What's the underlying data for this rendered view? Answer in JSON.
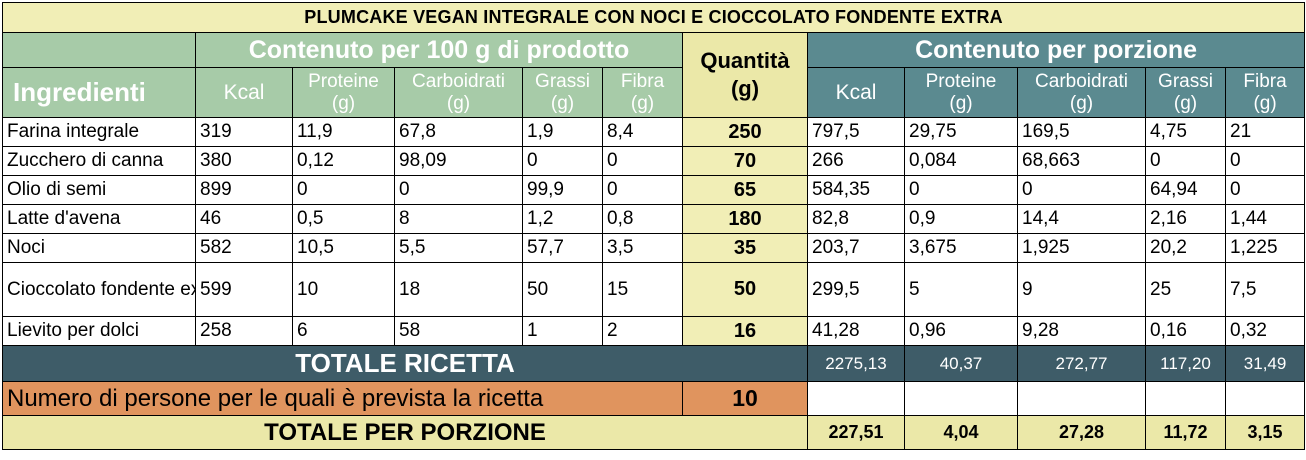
{
  "title": "PLUMCAKE VEGAN INTEGRALE CON NOCI E CIOCCOLATO FONDENTE EXTRA",
  "headers": {
    "per100": "Contenuto per 100 g di prodotto",
    "ingredienti": "Ingredienti",
    "quantita_line1": "Quantità",
    "quantita_line2": "(g)",
    "porzione": "Contenuto per porzione",
    "kcal": "Kcal",
    "proteine": "Proteine",
    "carboidrati": "Carboidrati",
    "grassi": "Grassi",
    "fibra": "Fibra",
    "unit": "(g)"
  },
  "rows": [
    {
      "name": "Farina integrale",
      "kcal": "319",
      "proteine": "11,9",
      "carboidrati": "67,8",
      "grassi": "1,9",
      "fibra": "8,4",
      "qty": "250",
      "p_kcal": "797,5",
      "p_proteine": "29,75",
      "p_carboidrati": "169,5",
      "p_grassi": "4,75",
      "p_fibra": "21"
    },
    {
      "name": "Zucchero di canna",
      "kcal": "380",
      "proteine": "0,12",
      "carboidrati": "98,09",
      "grassi": "0",
      "fibra": "0",
      "qty": "70",
      "p_kcal": "266",
      "p_proteine": "0,084",
      "p_carboidrati": "68,663",
      "p_grassi": "0",
      "p_fibra": "0"
    },
    {
      "name": "Olio di semi",
      "kcal": "899",
      "proteine": "0",
      "carboidrati": "0",
      "grassi": "99,9",
      "fibra": "0",
      "qty": "65",
      "p_kcal": "584,35",
      "p_proteine": "0",
      "p_carboidrati": "0",
      "p_grassi": "64,94",
      "p_fibra": "0"
    },
    {
      "name": "Latte d'avena",
      "kcal": "46",
      "proteine": "0,5",
      "carboidrati": "8",
      "grassi": "1,2",
      "fibra": "0,8",
      "qty": "180",
      "p_kcal": "82,8",
      "p_proteine": "0,9",
      "p_carboidrati": "14,4",
      "p_grassi": "2,16",
      "p_fibra": "1,44"
    },
    {
      "name": "Noci",
      "kcal": "582",
      "proteine": "10,5",
      "carboidrati": "5,5",
      "grassi": "57,7",
      "fibra": "3,5",
      "qty": "35",
      "p_kcal": "203,7",
      "p_proteine": "3,675",
      "p_carboidrati": "1,925",
      "p_grassi": "20,2",
      "p_fibra": "1,225"
    },
    {
      "name": "Cioccolato fondente extra",
      "kcal": "599",
      "proteine": "10",
      "carboidrati": "18",
      "grassi": "50",
      "fibra": "15",
      "qty": "50",
      "p_kcal": "299,5",
      "p_proteine": "5",
      "p_carboidrati": "9",
      "p_grassi": "25",
      "p_fibra": "7,5"
    },
    {
      "name": "Lievito per dolci",
      "kcal": "258",
      "proteine": "6",
      "carboidrati": "58",
      "grassi": "1",
      "fibra": "2",
      "qty": "16",
      "p_kcal": "41,28",
      "p_proteine": "0,96",
      "p_carboidrati": "9,28",
      "p_grassi": "0,16",
      "p_fibra": "0,32"
    }
  ],
  "totale_ricetta": {
    "label": "TOTALE RICETTA",
    "kcal": "2275,13",
    "proteine": "40,37",
    "carboidrati": "272,77",
    "grassi": "117,20",
    "fibra": "31,49"
  },
  "persone": {
    "label": "Numero di persone per le quali è prevista la ricetta",
    "value": "10"
  },
  "totale_porzione": {
    "label": "TOTALE PER PORZIONE",
    "kcal": "227,51",
    "proteine": "4,04",
    "carboidrati": "27,28",
    "grassi": "11,72",
    "fibra": "3,15"
  },
  "colors": {
    "title_bg": "#f1eeb6",
    "header_green": "#a7cba8",
    "header_teal": "#5b8a90",
    "quantity_bg": "#ebe8a8",
    "total_bg": "#3e5c68",
    "persons_bg": "#e0945e"
  }
}
